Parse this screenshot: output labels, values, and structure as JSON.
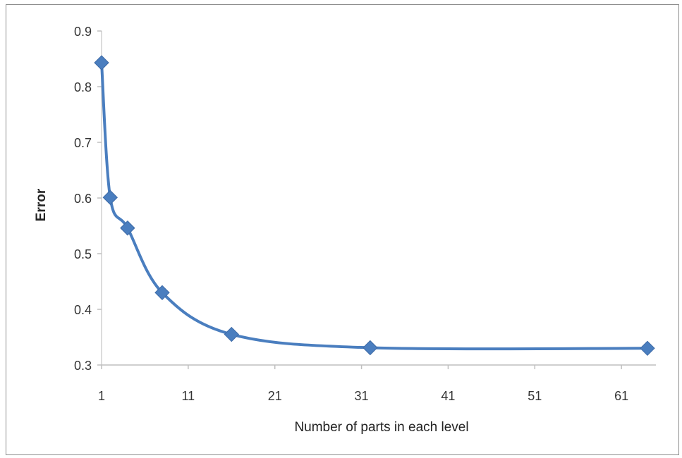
{
  "chart_data": {
    "type": "line",
    "title": "",
    "xlabel": "Number of parts in each level",
    "ylabel": "Error",
    "xlim": [
      1,
      64
    ],
    "ylim": [
      0.3,
      0.9
    ],
    "xticks": [
      "1",
      "11",
      "21",
      "31",
      "41",
      "51",
      "61"
    ],
    "yticks": [
      "0.3",
      "0.4",
      "0.5",
      "0.6",
      "0.7",
      "0.8",
      "0.9"
    ],
    "grid": false,
    "legend": "none",
    "series": [
      {
        "x": [
          1,
          2,
          4,
          8,
          16,
          32,
          64
        ],
        "y": [
          0.843,
          0.601,
          0.546,
          0.43,
          0.355,
          0.331,
          0.33
        ],
        "color": "#4a7ebf",
        "marker": "diamond",
        "smooth": true
      }
    ]
  }
}
